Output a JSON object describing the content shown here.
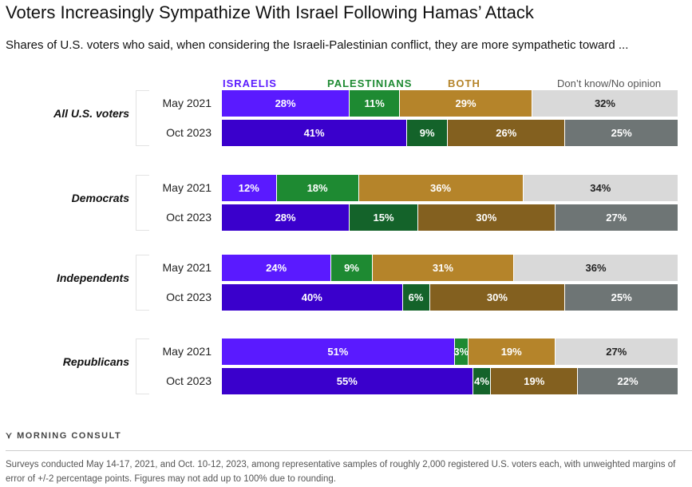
{
  "chart_data": {
    "type": "bar",
    "orientation": "horizontal",
    "stacked": true,
    "title": "Voters Increasingly Sympathize With Israel Following Hamas’ Attack",
    "subtitle": "Shares of U.S. voters who said, when considering the Israeli-Palestinian conflict, they are more sympathetic toward ...",
    "legend": [
      "ISRAELIS",
      "PALESTINIANS",
      "BOTH",
      "Don’t know/No opinion"
    ],
    "legend_placement": "top",
    "colors": {
      "May 2021": [
        "#5a1aff",
        "#1e8a32",
        "#b5842a",
        "#d9d9d9"
      ],
      "Oct 2023": [
        "#3a00cc",
        "#14632a",
        "#83601f",
        "#6e7575"
      ]
    },
    "legend_colors": [
      "#5a1aff",
      "#1e8a32",
      "#b5842a",
      "#555555"
    ],
    "groups": [
      {
        "name": "All U.S. voters",
        "rows": [
          {
            "label": "May 2021",
            "values": [
              28,
              11,
              29,
              32
            ]
          },
          {
            "label": "Oct 2023",
            "values": [
              41,
              9,
              26,
              25
            ]
          }
        ]
      },
      {
        "name": "Democrats",
        "rows": [
          {
            "label": "May 2021",
            "values": [
              12,
              18,
              36,
              34
            ]
          },
          {
            "label": "Oct 2023",
            "values": [
              28,
              15,
              30,
              27
            ]
          }
        ]
      },
      {
        "name": "Independents",
        "rows": [
          {
            "label": "May 2021",
            "values": [
              24,
              9,
              31,
              36
            ]
          },
          {
            "label": "Oct 2023",
            "values": [
              40,
              6,
              30,
              25
            ]
          }
        ]
      },
      {
        "name": "Republicans",
        "rows": [
          {
            "label": "May 2021",
            "values": [
              51,
              3,
              19,
              27
            ]
          },
          {
            "label": "Oct 2023",
            "values": [
              55,
              4,
              19,
              22
            ]
          }
        ]
      }
    ]
  },
  "footer": {
    "logo": "MORNING CONSULT",
    "note": "Surveys conducted May 14-17, 2021, and Oct. 10-12, 2023, among representative samples of roughly 2,000 registered U.S. voters each, with unweighted margins of error of +/-2 percentage points. Figures may not add up to 100% due to rounding."
  }
}
